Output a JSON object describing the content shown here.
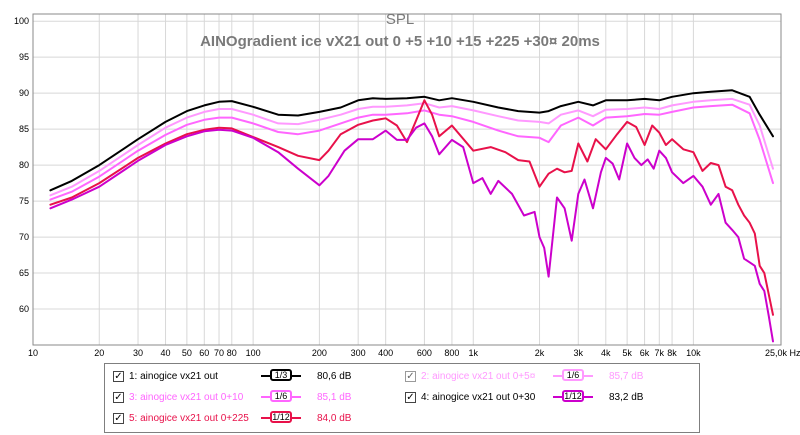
{
  "chart_data": {
    "type": "line",
    "title": "SPL",
    "subtitle": "AINOgradient ice vX21 out 0 +5 +10 +15 +225 +30¤ 20ms",
    "x_scale": "log",
    "xlim": [
      10,
      25000
    ],
    "ylim": [
      55,
      101
    ],
    "x_ticks": [
      10,
      20,
      30,
      40,
      50,
      60,
      70,
      80,
      100,
      200,
      300,
      400,
      600,
      800,
      1000,
      2000,
      3000,
      4000,
      5000,
      6000,
      7000,
      8000,
      10000,
      25000
    ],
    "x_tick_labels": [
      "10",
      "20",
      "30",
      "40",
      "50",
      "60",
      "70",
      "80",
      "100",
      "200",
      "300",
      "400",
      "600",
      "800",
      "1k",
      "2k",
      "3k",
      "4k",
      "5k",
      "6k",
      "7k",
      "8k",
      "10k",
      "25,0k Hz"
    ],
    "y_ticks": [
      60,
      65,
      70,
      75,
      80,
      85,
      90,
      95,
      100
    ],
    "grid": true,
    "series": [
      {
        "name": "1: ainogice vx21 out",
        "color": "#000000",
        "x": [
          12,
          15,
          20,
          30,
          40,
          50,
          60,
          70,
          80,
          100,
          130,
          160,
          200,
          250,
          300,
          350,
          400,
          500,
          600,
          700,
          800,
          1000,
          1300,
          1600,
          2000,
          2200,
          2500,
          3000,
          3500,
          4000,
          5000,
          6000,
          7000,
          8000,
          10000,
          12000,
          15000,
          18000,
          20000,
          23000
        ],
        "y": [
          76.5,
          77.8,
          80,
          83.6,
          86,
          87.5,
          88.3,
          88.8,
          88.9,
          88.1,
          87,
          86.9,
          87.4,
          88,
          89,
          89.3,
          89.2,
          89.3,
          89.5,
          89,
          89.3,
          88.8,
          88,
          87.5,
          87.3,
          87.5,
          88.2,
          88.8,
          88.3,
          89,
          89,
          89.2,
          89,
          89.5,
          90,
          90.2,
          90.4,
          89.5,
          87,
          84
        ]
      },
      {
        "name": "2: ainogice vx21 out 0+5¤",
        "color": "#ff99ff",
        "x": [
          12,
          15,
          20,
          30,
          40,
          50,
          60,
          70,
          80,
          100,
          130,
          160,
          200,
          250,
          300,
          350,
          400,
          500,
          600,
          700,
          800,
          1000,
          1300,
          1600,
          2000,
          2200,
          2500,
          3000,
          3500,
          4000,
          5000,
          6000,
          7000,
          8000,
          10000,
          12000,
          15000,
          18000,
          20000,
          23000
        ],
        "y": [
          75.8,
          77,
          79.2,
          82.8,
          85.2,
          86.6,
          87.4,
          87.8,
          87.8,
          87,
          85.8,
          85.7,
          86.3,
          87,
          87.8,
          88.1,
          88.1,
          88.3,
          88.6,
          88,
          88.2,
          87.6,
          86.8,
          86.2,
          86,
          85.8,
          87,
          87.6,
          86.8,
          87.7,
          87.8,
          88,
          87.8,
          88.3,
          88.8,
          89,
          89.2,
          88.4,
          85.5,
          79.5
        ]
      },
      {
        "name": "3: ainogice vx21 out 0+10",
        "color": "#ff66ff",
        "x": [
          12,
          15,
          20,
          30,
          40,
          50,
          60,
          70,
          80,
          100,
          130,
          160,
          200,
          250,
          300,
          350,
          400,
          500,
          600,
          700,
          800,
          1000,
          1300,
          1600,
          2000,
          2200,
          2500,
          3000,
          3500,
          4000,
          5000,
          6000,
          7000,
          8000,
          10000,
          12000,
          15000,
          18000,
          20000,
          23000
        ],
        "y": [
          75.2,
          76.3,
          78.4,
          82,
          84.2,
          85.6,
          86.3,
          86.6,
          86.6,
          85.8,
          84.6,
          84.3,
          84.8,
          85.8,
          86.6,
          87,
          87,
          87.2,
          87.6,
          87,
          86.8,
          86,
          84.8,
          84,
          83.8,
          83.2,
          85.5,
          86.6,
          85.5,
          86.6,
          86.8,
          87.1,
          87,
          87.4,
          88,
          88.2,
          88.4,
          87.2,
          83.5,
          77.5
        ]
      },
      {
        "name": "4: ainogice vx21 out 0+30",
        "color": "#cc00cc",
        "x": [
          12,
          15,
          20,
          30,
          40,
          50,
          60,
          70,
          80,
          100,
          130,
          160,
          200,
          220,
          260,
          300,
          350,
          400,
          450,
          500,
          550,
          600,
          650,
          700,
          800,
          900,
          1000,
          1100,
          1200,
          1300,
          1500,
          1700,
          1900,
          2000,
          2100,
          2200,
          2400,
          2600,
          2800,
          3000,
          3200,
          3500,
          3800,
          4000,
          4300,
          4600,
          5000,
          5400,
          5800,
          6200,
          6600,
          7000,
          7500,
          8000,
          9000,
          10000,
          11000,
          12000,
          13000,
          14000,
          15000,
          16000,
          17000,
          18000,
          19000,
          20000,
          21000,
          22000,
          23000
        ],
        "y": [
          74,
          75.2,
          77,
          80.6,
          82.8,
          84,
          84.7,
          84.9,
          84.8,
          83.8,
          81.8,
          79.5,
          77.2,
          78.5,
          82,
          83.6,
          83.6,
          84.8,
          83.5,
          83.5,
          85.2,
          85.8,
          84,
          81.5,
          83.5,
          82.5,
          77.5,
          78.2,
          76,
          77.8,
          76,
          73,
          73.5,
          70,
          68.5,
          64.5,
          75.5,
          74,
          69.5,
          76,
          78,
          74,
          79,
          81,
          80.2,
          78,
          83,
          81,
          80,
          80.8,
          79.5,
          82,
          81,
          79,
          77.5,
          78.5,
          77,
          74.5,
          76,
          72,
          71,
          70,
          67,
          66.5,
          66,
          63.5,
          62.5,
          59,
          55.5
        ]
      },
      {
        "name": "5: ainogice vx21 out 0+225",
        "color": "#e8114a",
        "x": [
          12,
          15,
          20,
          30,
          40,
          50,
          60,
          70,
          80,
          100,
          130,
          160,
          200,
          220,
          250,
          300,
          350,
          400,
          450,
          500,
          550,
          600,
          650,
          700,
          800,
          1000,
          1200,
          1400,
          1600,
          1800,
          2000,
          2200,
          2400,
          2600,
          2800,
          3000,
          3300,
          3600,
          4000,
          4500,
          5000,
          5500,
          6000,
          6500,
          7000,
          7500,
          8000,
          9000,
          10000,
          11000,
          12000,
          13000,
          14000,
          15000,
          16000,
          17000,
          18000,
          19000,
          20000,
          21000,
          22000,
          23000
        ],
        "y": [
          74.5,
          75.5,
          77.5,
          81,
          83,
          84.3,
          84.9,
          85.2,
          85.1,
          83.9,
          82.5,
          81.3,
          80.7,
          82,
          84.3,
          85.6,
          86.2,
          86.5,
          85.5,
          83.2,
          86.2,
          89,
          87,
          84,
          85.5,
          82,
          82.5,
          81.8,
          80.7,
          80.5,
          77,
          78.8,
          79.5,
          79,
          79.2,
          83,
          80.5,
          83.6,
          82.2,
          84.3,
          86,
          85.3,
          82.8,
          85.5,
          84.5,
          82.8,
          83.6,
          82.2,
          81.8,
          79.2,
          80.3,
          80,
          77,
          76.5,
          74.5,
          73,
          72,
          70.5,
          66,
          65,
          62,
          59.2
        ]
      }
    ]
  },
  "legend": {
    "items": [
      {
        "label": "1: ainogice vx21 out",
        "smoothing": "1/3",
        "value": "80,6 dB",
        "color": "#000000",
        "checked": "✓",
        "dim": false
      },
      {
        "label": "2: ainogice vx21 out 0+5¤",
        "smoothing": "1/6",
        "value": "85,7 dB",
        "color": "#ff99ff",
        "checked": "✓",
        "dim": true
      },
      {
        "label": "3: ainogice vx21 out 0+10",
        "smoothing": "1/6",
        "value": "85,1 dB",
        "color": "#ff66ff",
        "checked": "✓",
        "dim": false
      },
      {
        "label": "4: ainogice vx21 out 0+30",
        "smoothing": "1/12",
        "value": "83,2 dB",
        "color": "#cc00cc",
        "checked": "✓",
        "dim": false
      },
      {
        "label": "5: ainogice vx21 out 0+225",
        "smoothing": "1/12",
        "value": "84,0 dB",
        "color": "#e8114a",
        "checked": "✓",
        "dim": false
      }
    ]
  }
}
